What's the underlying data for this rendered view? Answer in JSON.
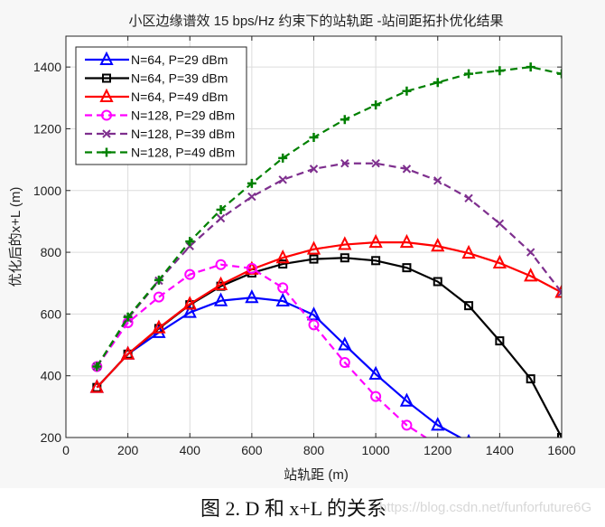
{
  "chart_data": {
    "type": "line",
    "title": "小区边缘谱效 15 bps/Hz 约束下的站轨距 -站间距拓扑优化结果",
    "xlabel": "站轨距 (m)",
    "ylabel": "优化后的x+L (m)",
    "xlim": [
      0,
      1600
    ],
    "ylim": [
      200,
      1500
    ],
    "xticks": [
      0,
      200,
      400,
      600,
      800,
      1000,
      1200,
      1400,
      1600
    ],
    "yticks": [
      200,
      400,
      600,
      800,
      1000,
      1200,
      1400
    ],
    "grid": true,
    "legend_placement": "top-left",
    "x": [
      100,
      200,
      300,
      400,
      500,
      600,
      700,
      800,
      900,
      1000,
      1100,
      1200,
      1300,
      1400,
      1500,
      1600
    ],
    "series": [
      {
        "name": "N=64, P=29 dBm",
        "color": "#0000ff",
        "dash": "solid",
        "marker": "triangle",
        "values": [
          362,
          470,
          540,
          605,
          643,
          653,
          642,
          597,
          500,
          405,
          318,
          240,
          185,
          null,
          null,
          null
        ]
      },
      {
        "name": "N=64, P=39 dBm",
        "color": "#000000",
        "dash": "solid",
        "marker": "square",
        "values": [
          362,
          470,
          553,
          630,
          690,
          733,
          762,
          778,
          782,
          773,
          750,
          705,
          627,
          513,
          390,
          200
        ]
      },
      {
        "name": "N=64, P=49 dBm",
        "color": "#ff0000",
        "dash": "solid",
        "marker": "triangle",
        "values": [
          362,
          470,
          555,
          632,
          695,
          745,
          782,
          810,
          825,
          832,
          832,
          820,
          797,
          765,
          723,
          670
        ]
      },
      {
        "name": "N=128, P=29 dBm",
        "color": "#ff00ff",
        "dash": "dashed",
        "marker": "circle",
        "values": [
          430,
          572,
          655,
          728,
          760,
          748,
          685,
          565,
          443,
          333,
          240,
          175,
          null,
          null,
          null,
          null
        ]
      },
      {
        "name": "N=128, P=39 dBm",
        "color": "#7e2f8e",
        "dash": "dashed",
        "marker": "x",
        "values": [
          430,
          585,
          708,
          820,
          910,
          980,
          1035,
          1070,
          1088,
          1088,
          1070,
          1032,
          975,
          893,
          800,
          670
        ]
      },
      {
        "name": "N=128, P=49 dBm",
        "color": "#008000",
        "dash": "dashed",
        "marker": "plus",
        "values": [
          430,
          590,
          710,
          835,
          938,
          1023,
          1105,
          1172,
          1230,
          1277,
          1322,
          1350,
          1378,
          1388,
          1400,
          1378
        ]
      }
    ]
  },
  "caption": {
    "text": "图 2. D 和 x+L 的关系",
    "watermark": "https://blog.csdn.net/funforfuture6G"
  }
}
